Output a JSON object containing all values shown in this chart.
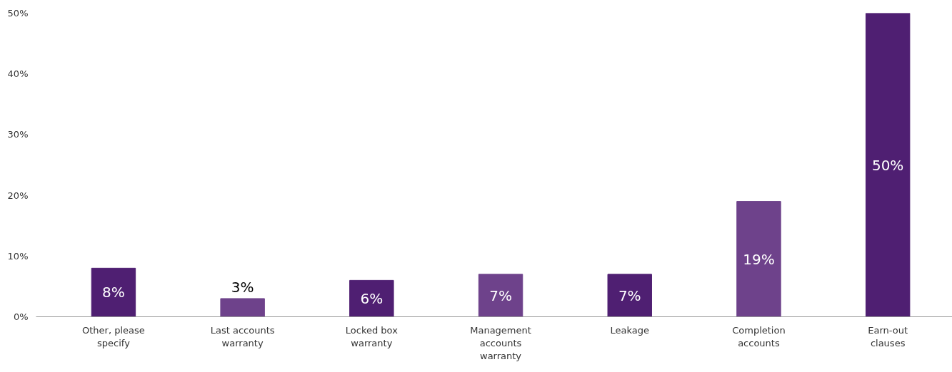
{
  "chart_data": {
    "type": "bar",
    "categories": [
      "Other, please specify",
      "Last accounts warranty",
      "Locked box warranty",
      "Management accounts warranty",
      "Leakage",
      "Completion accounts",
      "Earn-out clauses"
    ],
    "values": [
      8,
      3,
      6,
      7,
      7,
      19,
      50
    ],
    "value_labels": [
      "8%",
      "3%",
      "6%",
      "7%",
      "7%",
      "19%",
      "50%"
    ],
    "colors": [
      "#4f1f72",
      "#6e428b",
      "#4f1f72",
      "#6e428b",
      "#4f1f72",
      "#6e428b",
      "#4f1f72"
    ],
    "ylim": [
      0,
      50
    ],
    "yticks": [
      {
        "value": 0,
        "label": "0%"
      },
      {
        "value": 10,
        "label": "10%"
      },
      {
        "value": 20,
        "label": "20%"
      },
      {
        "value": 30,
        "label": "30%"
      },
      {
        "value": 40,
        "label": "40%"
      },
      {
        "value": 50,
        "label": "50%"
      }
    ],
    "grid": false
  }
}
